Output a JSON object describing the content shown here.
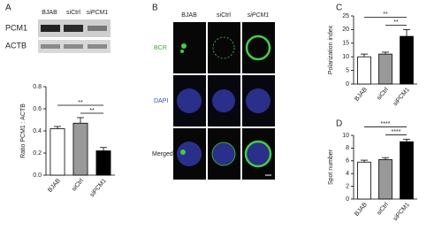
{
  "panels": [
    "A",
    "B",
    "C",
    "D"
  ],
  "blot": {
    "lanes": [
      "BJAB",
      "siCtrl",
      "siPCM1"
    ],
    "rows": [
      "PCM1",
      "ACTB"
    ]
  },
  "microscopy": {
    "columns": [
      "BJAB",
      "siCtrl",
      "siPCM1"
    ],
    "rows": [
      "BCR",
      "DAPI",
      "Merged"
    ]
  },
  "chart_data": [
    {
      "type": "bar",
      "ylabel": "Ratio PCM1 : ACTB",
      "categories": [
        "BJAB",
        "siCtrl",
        "siPCM1"
      ],
      "values": [
        0.42,
        0.47,
        0.22
      ],
      "errors": [
        0.02,
        0.05,
        0.03
      ],
      "colors": [
        "#ffffff",
        "#999999",
        "#000000"
      ],
      "ylim": [
        0,
        0.8
      ],
      "yticks": [
        {
          "value": 0,
          "label": "0.0"
        },
        0.2,
        0.4,
        0.6,
        0.8
      ],
      "annotations": [
        {
          "text": "**",
          "between": [
            "BJAB",
            "siPCM1"
          ]
        },
        {
          "text": "**",
          "between": [
            "siCtrl",
            "siPCM1"
          ]
        }
      ]
    },
    {
      "type": "bar",
      "ylabel": "Polarization index",
      "categories": [
        "BJAB",
        "siCtrl",
        "siPCM1"
      ],
      "values": [
        10,
        11,
        17.5
      ],
      "errors": [
        1,
        0.7,
        2.5
      ],
      "colors": [
        "#ffffff",
        "#999999",
        "#000000"
      ],
      "ylim": [
        0,
        25
      ],
      "yticks": [
        0,
        5,
        10,
        15,
        20,
        25
      ],
      "annotations": [
        {
          "text": "**",
          "between": [
            "BJAB",
            "siPCM1"
          ]
        },
        {
          "text": "**",
          "between": [
            "siCtrl",
            "siPCM1"
          ]
        }
      ]
    },
    {
      "type": "bar",
      "ylabel": "Spot number",
      "categories": [
        "BJAB",
        "siCtrl",
        "siPCM1"
      ],
      "values": [
        5.8,
        6.2,
        9.0
      ],
      "errors": [
        0.3,
        0.3,
        0.4
      ],
      "colors": [
        "#ffffff",
        "#999999",
        "#000000"
      ],
      "ylim": [
        0,
        10
      ],
      "yticks": [
        0,
        2,
        4,
        6,
        8,
        10
      ],
      "annotations": [
        {
          "text": "****",
          "between": [
            "BJAB",
            "siPCM1"
          ]
        },
        {
          "text": "****",
          "between": [
            "siCtrl",
            "siPCM1"
          ]
        }
      ]
    }
  ]
}
